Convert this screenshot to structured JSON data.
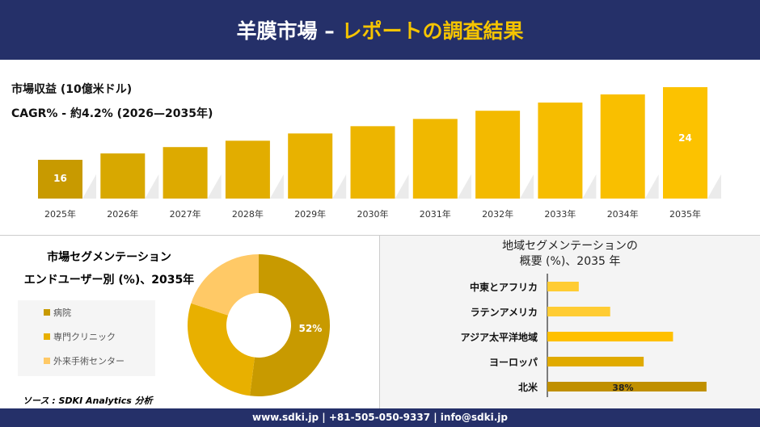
{
  "header": {
    "title_white": "羊膜市場 –",
    "title_yellow": "レポートの調査結果"
  },
  "top": {
    "line1": "市場収益 (10億米ドル)",
    "line2": "CAGR% - 約4.2% (2026—2035年)"
  },
  "chart_data": [
    {
      "type": "bar",
      "categories": [
        "2025年",
        "2026年",
        "2027年",
        "2028年",
        "2029年",
        "2030年",
        "2031年",
        "2032年",
        "2033年",
        "2034年",
        "2035年"
      ],
      "values": [
        16,
        16.7,
        17.4,
        18.1,
        18.9,
        19.7,
        20.5,
        21.4,
        22.3,
        23.2,
        24
      ],
      "data_labels": {
        "0": "16",
        "10": "24"
      },
      "ylabel": "市場収益 (10億米ドル)"
    },
    {
      "type": "pie",
      "title": "市場セグメンテーション エンドユーザー別 (%)、2035年",
      "categories": [
        "病院",
        "専門クリニック",
        "外来手術センター"
      ],
      "values": [
        52,
        28,
        20
      ],
      "colors": [
        "#C89A00",
        "#E8B000",
        "#FFC966"
      ],
      "data_labels": {
        "0": "52%"
      }
    },
    {
      "type": "bar",
      "orientation": "horizontal",
      "title": "地域セグメンテーションの 概要 (%)、2035 年",
      "categories": [
        "中東とアフリカ",
        "ラテンアメリカ",
        "アジア太平洋地域",
        "ヨーロッパ",
        "北米"
      ],
      "values": [
        7.5,
        15,
        30,
        23,
        38
      ],
      "colors": [
        "#FFCC33",
        "#FFCC33",
        "#FFC000",
        "#E0AA00",
        "#C09000"
      ],
      "data_labels": {
        "4": "38%"
      }
    }
  ],
  "segment": {
    "title1": "市場セグメンテーション",
    "title2": "エンドユーザー別 (%)、2035年",
    "source": "ソース : SDKI Analytics 分析"
  },
  "region": {
    "title1": "地域セグメンテーションの",
    "title2": "概要 (%)、2035 年"
  },
  "footer": {
    "text": "www.sdki.jp | +81-505-050-9337 | info@sdki.jp"
  }
}
